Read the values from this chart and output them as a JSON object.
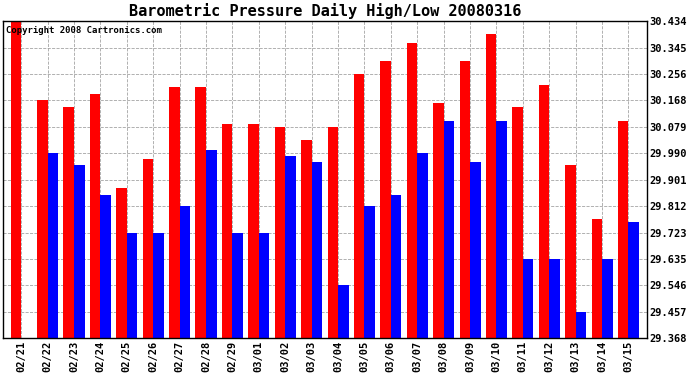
{
  "title": "Barometric Pressure Daily High/Low 20080316",
  "copyright": "Copyright 2008 Cartronics.com",
  "dates": [
    "02/21",
    "02/22",
    "02/23",
    "02/24",
    "02/25",
    "02/26",
    "02/27",
    "02/28",
    "02/29",
    "03/01",
    "03/02",
    "03/03",
    "03/04",
    "03/05",
    "03/06",
    "03/07",
    "03/08",
    "03/09",
    "03/10",
    "03/11",
    "03/12",
    "03/13",
    "03/14",
    "03/15"
  ],
  "highs": [
    30.434,
    30.168,
    30.145,
    30.19,
    29.872,
    29.97,
    30.212,
    30.212,
    30.09,
    30.09,
    30.079,
    30.034,
    30.079,
    30.256,
    30.3,
    30.36,
    30.16,
    30.3,
    30.39,
    30.145,
    30.22,
    29.95,
    29.77,
    30.1
  ],
  "lows": [
    29.368,
    29.99,
    29.95,
    29.85,
    29.723,
    29.723,
    29.812,
    30.0,
    29.723,
    29.723,
    29.98,
    29.96,
    29.546,
    29.812,
    29.85,
    29.99,
    30.1,
    29.96,
    30.1,
    29.635,
    29.635,
    29.457,
    29.635,
    29.76
  ],
  "high_color": "#ff0000",
  "low_color": "#0000ff",
  "ylim_min": 29.368,
  "ylim_max": 30.434,
  "yticks": [
    30.434,
    30.345,
    30.256,
    30.168,
    30.079,
    29.99,
    29.901,
    29.812,
    29.723,
    29.635,
    29.546,
    29.457,
    29.368
  ],
  "background_color": "#ffffff",
  "plot_bg_color": "#ffffff",
  "grid_color": "#999999",
  "title_fontsize": 11,
  "tick_fontsize": 7.5,
  "bar_width": 0.4,
  "fig_width": 6.9,
  "fig_height": 3.75
}
